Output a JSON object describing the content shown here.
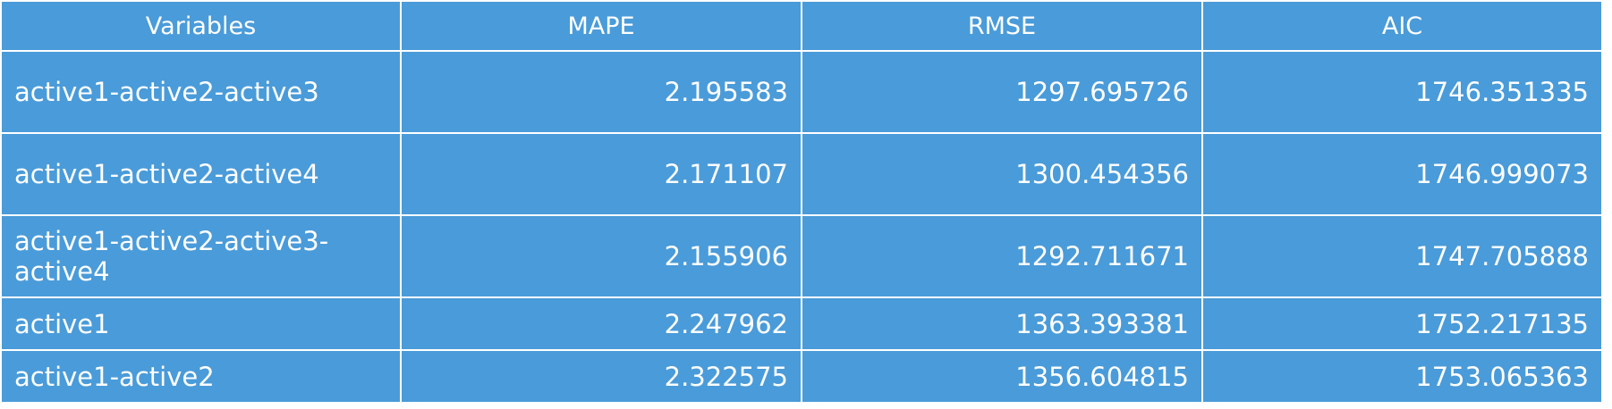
{
  "chart_data": {
    "type": "table",
    "columns": [
      "Variables",
      "MAPE",
      "RMSE",
      "AIC"
    ],
    "rows": [
      [
        "active1-active2-active3",
        "2.195583",
        "1297.695726",
        "1746.351335"
      ],
      [
        "active1-active2-active4",
        "2.171107",
        "1300.454356",
        "1746.999073"
      ],
      [
        "active1-active2-active3-active4",
        "2.155906",
        "1292.711671",
        "1747.705888"
      ],
      [
        "active1",
        "2.247962",
        "1363.393381",
        "1752.217135"
      ],
      [
        "active1-active2",
        "2.322575",
        "1356.604815",
        "1753.065363"
      ]
    ]
  },
  "colors": {
    "cell_background": "#4a9bd9",
    "grid_lines": "#ffffff",
    "text": "#ffffff"
  }
}
